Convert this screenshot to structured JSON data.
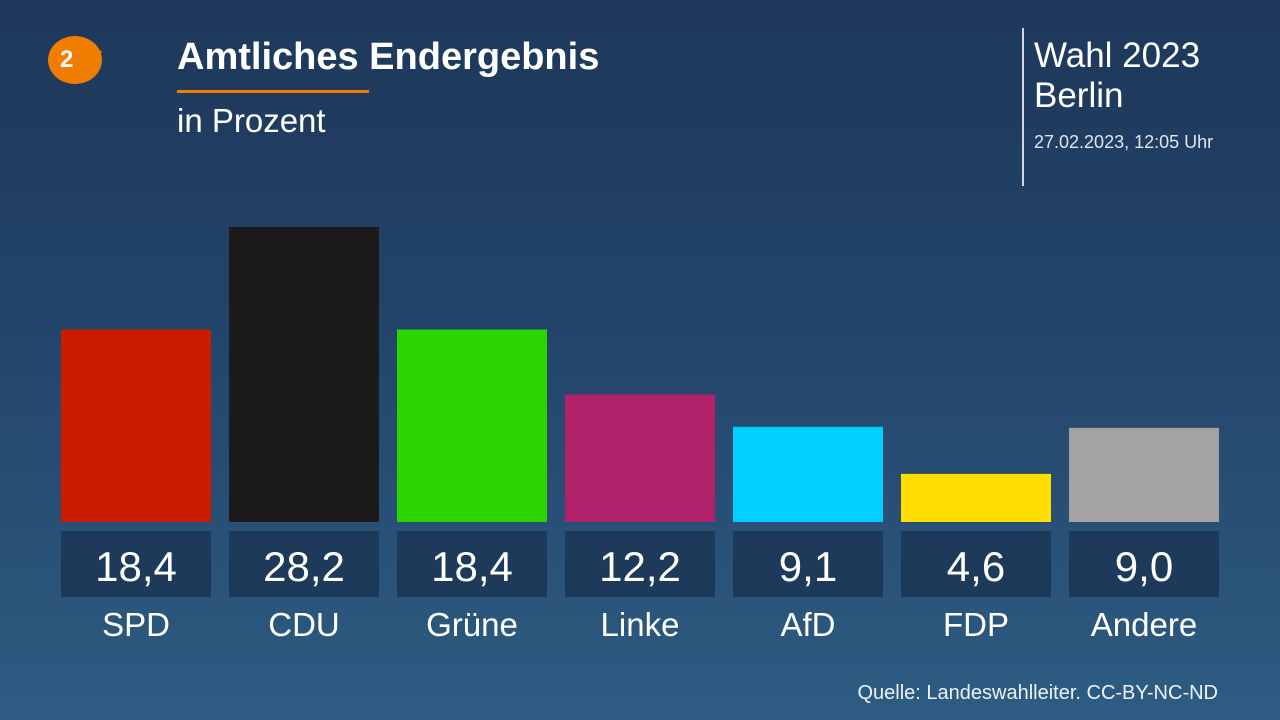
{
  "header": {
    "logo": "ZDF",
    "title": "Amtliches Endergebnis",
    "subtitle": "in Prozent",
    "election": "Wahl 2023",
    "region": "Berlin",
    "timestamp": "27.02.2023, 12:05 Uhr"
  },
  "footer": {
    "source": "Quelle: Landeswahlleiter. CC-BY-NC-ND"
  },
  "colors": {
    "accent": "#f07d00",
    "value_box": "#1e3a5a"
  },
  "chart_data": {
    "type": "bar",
    "title": "Amtliches Endergebnis",
    "subtitle": "in Prozent",
    "categories": [
      "SPD",
      "CDU",
      "Grüne",
      "Linke",
      "AfD",
      "FDP",
      "Andere"
    ],
    "values": [
      18.4,
      28.2,
      18.4,
      12.2,
      9.1,
      4.6,
      9.0
    ],
    "value_labels": [
      "18,4",
      "28,2",
      "18,4",
      "12,2",
      "9,1",
      "4,6",
      "9,0"
    ],
    "colors": [
      "#cc1c00",
      "#1b1b1b",
      "#2ad500",
      "#b1226a",
      "#00d0ff",
      "#ffdd00",
      "#a3a3a3"
    ],
    "ylim": [
      0,
      28.2
    ],
    "grid": false,
    "legend": "none"
  }
}
